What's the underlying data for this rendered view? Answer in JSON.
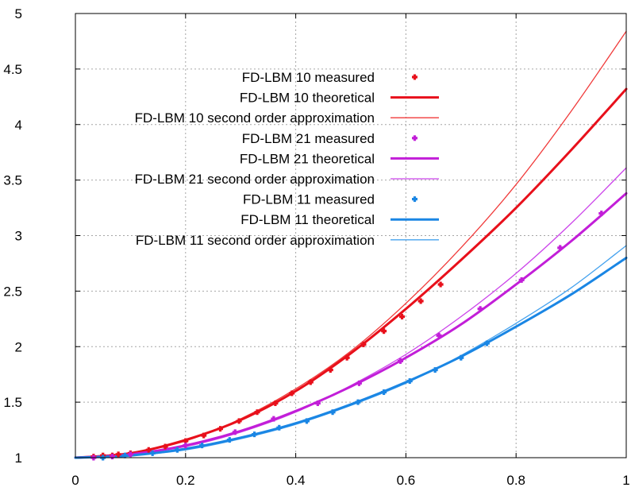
{
  "chart_data": {
    "type": "line",
    "title": "",
    "xlabel": "",
    "ylabel": "",
    "xlim": [
      0,
      1
    ],
    "ylim": [
      1,
      5
    ],
    "xticks": [
      "0",
      "0.2",
      "0.4",
      "0.6",
      "0.8",
      "1"
    ],
    "yticks": [
      "1",
      "1.5",
      "2",
      "2.5",
      "3",
      "3.5",
      "4",
      "4.5",
      "5"
    ],
    "grid": true,
    "legend_position": "top-left",
    "series": [
      {
        "name": "FD-LBM 10 measured",
        "kind": "points",
        "color": "#e8101b",
        "x": [
          0.033,
          0.05,
          0.067,
          0.078,
          0.1,
          0.133,
          0.163,
          0.2,
          0.233,
          0.263,
          0.297,
          0.33,
          0.363,
          0.393,
          0.427,
          0.463,
          0.493,
          0.523,
          0.56,
          0.593,
          0.627,
          0.663
        ],
        "y": [
          1.01,
          1.02,
          1.02,
          1.03,
          1.04,
          1.07,
          1.1,
          1.15,
          1.2,
          1.26,
          1.33,
          1.41,
          1.49,
          1.58,
          1.68,
          1.79,
          1.9,
          2.02,
          2.14,
          2.27,
          2.41,
          2.56
        ]
      },
      {
        "name": "FD-LBM 10 theoretical",
        "kind": "line",
        "color": "#e8101b",
        "width": 3,
        "x": [
          0,
          0.1,
          0.2,
          0.3,
          0.4,
          0.5,
          0.6,
          0.7,
          0.8,
          0.9,
          1.0
        ],
        "y": [
          1.0,
          1.04,
          1.16,
          1.34,
          1.6,
          1.94,
          2.34,
          2.78,
          3.25,
          3.77,
          4.32
        ]
      },
      {
        "name": "FD-LBM 10 second order approximation",
        "kind": "line",
        "color": "#f03a3a",
        "width": 1.3,
        "x": [
          0,
          0.1,
          0.2,
          0.3,
          0.4,
          0.5,
          0.6,
          0.7,
          0.8,
          0.9,
          1.0
        ],
        "y": [
          1.0,
          1.04,
          1.15,
          1.35,
          1.62,
          1.96,
          2.39,
          2.89,
          3.46,
          4.12,
          4.84
        ]
      },
      {
        "name": "FD-LBM 21 measured",
        "kind": "points",
        "color": "#c21ed8",
        "x": [
          0.033,
          0.067,
          0.1,
          0.2,
          0.29,
          0.36,
          0.44,
          0.515,
          0.59,
          0.66,
          0.735,
          0.81,
          0.88,
          0.955
        ],
        "y": [
          1.0,
          1.01,
          1.03,
          1.11,
          1.23,
          1.35,
          1.49,
          1.67,
          1.87,
          2.1,
          2.34,
          2.6,
          2.89,
          3.2
        ]
      },
      {
        "name": "FD-LBM 21 theoretical",
        "kind": "line",
        "color": "#c21ed8",
        "width": 3,
        "x": [
          0,
          0.1,
          0.2,
          0.3,
          0.4,
          0.5,
          0.6,
          0.7,
          0.8,
          0.9,
          1.0
        ],
        "y": [
          1.0,
          1.03,
          1.11,
          1.24,
          1.42,
          1.64,
          1.9,
          2.2,
          2.56,
          2.95,
          3.38
        ]
      },
      {
        "name": "FD-LBM 21 second order approximation",
        "kind": "line",
        "color": "#cc44ea",
        "width": 1.3,
        "x": [
          0,
          0.1,
          0.2,
          0.3,
          0.4,
          0.5,
          0.6,
          0.7,
          0.8,
          0.9,
          1.0
        ],
        "y": [
          1.0,
          1.03,
          1.1,
          1.23,
          1.41,
          1.65,
          1.93,
          2.27,
          2.66,
          3.11,
          3.61
        ]
      },
      {
        "name": "FD-LBM 11 measured",
        "kind": "points",
        "color": "#1a86e4",
        "x": [
          0.05,
          0.09,
          0.14,
          0.185,
          0.23,
          0.28,
          0.325,
          0.37,
          0.42,
          0.467,
          0.513,
          0.56,
          0.607,
          0.653,
          0.7,
          0.747
        ],
        "y": [
          1.0,
          1.02,
          1.04,
          1.07,
          1.11,
          1.16,
          1.21,
          1.27,
          1.33,
          1.41,
          1.5,
          1.59,
          1.69,
          1.79,
          1.9,
          2.03
        ]
      },
      {
        "name": "FD-LBM 11 theoretical",
        "kind": "line",
        "color": "#1a86e4",
        "width": 3,
        "x": [
          0,
          0.1,
          0.2,
          0.3,
          0.4,
          0.5,
          0.6,
          0.7,
          0.8,
          0.9,
          1.0
        ],
        "y": [
          1.0,
          1.02,
          1.08,
          1.18,
          1.31,
          1.48,
          1.68,
          1.91,
          2.18,
          2.47,
          2.8
        ]
      },
      {
        "name": "FD-LBM 11 second order approximation",
        "kind": "line",
        "color": "#45a2ee",
        "width": 1.3,
        "x": [
          0,
          0.1,
          0.2,
          0.3,
          0.4,
          0.5,
          0.6,
          0.7,
          0.8,
          0.9,
          1.0
        ],
        "y": [
          1.0,
          1.02,
          1.07,
          1.17,
          1.3,
          1.47,
          1.67,
          1.92,
          2.21,
          2.53,
          2.91
        ]
      }
    ]
  }
}
